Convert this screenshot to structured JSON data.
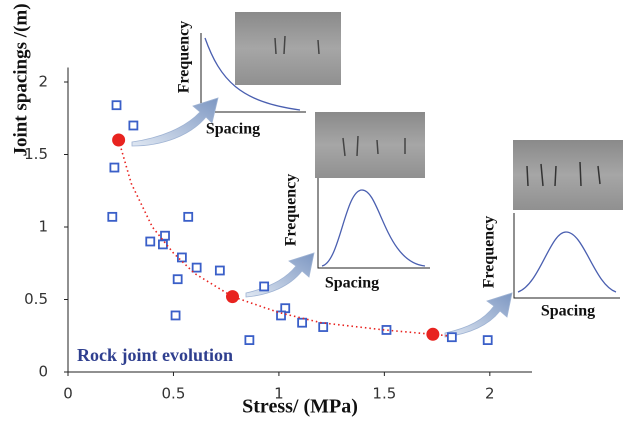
{
  "chart_data": {
    "type": "scatter",
    "x_label": "Stress/ (MPa)",
    "y_label": "Joint spacings /(m)",
    "annotation": "Rock joint evolution",
    "xlim": [
      0,
      2.2
    ],
    "ylim": [
      0,
      2.1
    ],
    "xticks": [
      0,
      0.5,
      1,
      1.5,
      2
    ],
    "yticks": [
      0,
      0.5,
      1,
      1.5,
      2
    ],
    "series": [
      {
        "color": "#3a5fc8",
        "marker": "square",
        "x": [
          0.23,
          0.31,
          0.22,
          0.21,
          0.39,
          0.46,
          0.45,
          0.57,
          0.54,
          0.61,
          0.72,
          0.52,
          0.51,
          0.93,
          1.03,
          1.01,
          1.11,
          1.21,
          1.51,
          0.86,
          1.82,
          1.99
        ],
        "values": [
          1.84,
          1.7,
          1.41,
          1.07,
          0.9,
          0.94,
          0.88,
          1.07,
          0.79,
          0.72,
          0.7,
          0.64,
          0.39,
          0.59,
          0.44,
          0.39,
          0.34,
          0.31,
          0.29,
          0.22,
          0.24,
          0.22
        ]
      },
      {
        "color": "#e8231f",
        "marker": "dotted-line",
        "x": [
          0.24,
          0.3,
          0.4,
          0.5,
          0.6,
          0.78,
          1.0,
          1.2,
          1.5,
          1.73,
          1.8
        ],
        "values": [
          1.6,
          1.3,
          1.0,
          0.82,
          0.68,
          0.52,
          0.41,
          0.34,
          0.29,
          0.26,
          0.25
        ]
      },
      {
        "color": "#e8231f",
        "marker": "circle",
        "x": [
          0.24,
          0.78,
          1.73
        ],
        "values": [
          1.6,
          0.52,
          0.26
        ]
      }
    ],
    "insets": [
      {
        "y_label": "Frequency",
        "x_label": "Spacing"
      },
      {
        "y_label": "Frequency",
        "x_label": "Spacing"
      },
      {
        "y_label": "Frequency",
        "x_label": "Spacing"
      }
    ]
  }
}
